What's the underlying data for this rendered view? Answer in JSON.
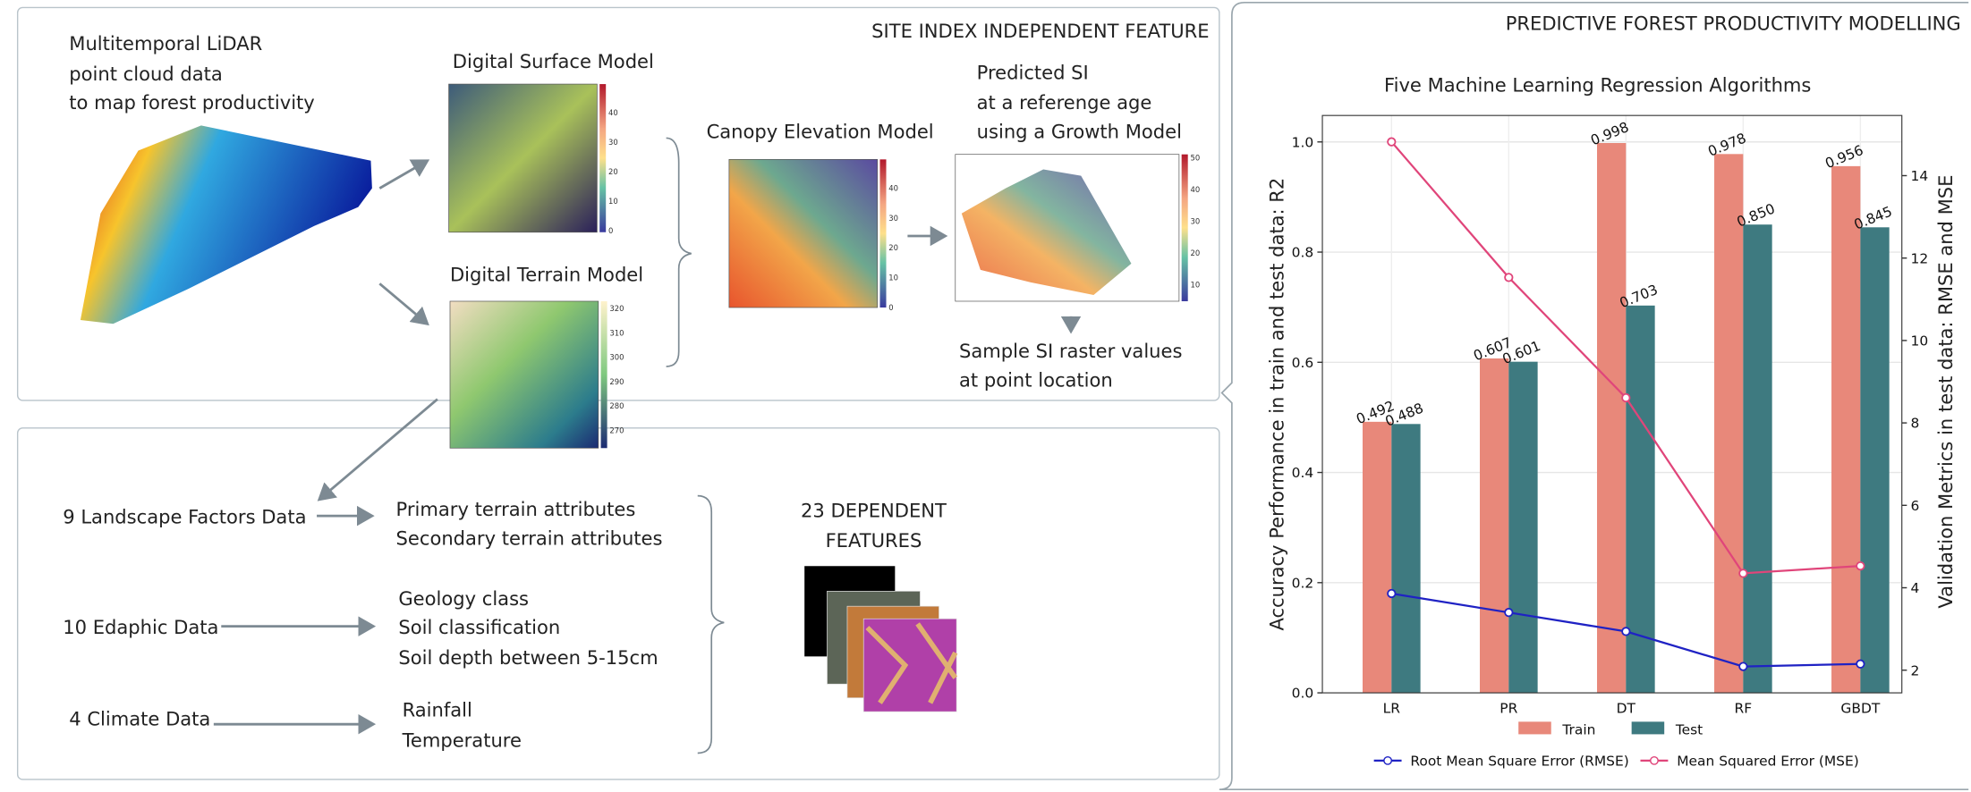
{
  "site_panel": {
    "title": "SITE INDEX INDEPENDENT FEATURE",
    "lidar": [
      "Multitemporal LiDAR",
      "point cloud data",
      "to map forest productivity"
    ],
    "dsm": {
      "label": "Digital Surface Model",
      "colorbar": [
        "40",
        "30",
        "20",
        "10",
        "0"
      ]
    },
    "dtm": {
      "label": "Digital Terrain Model",
      "colorbar": [
        "320",
        "310",
        "300",
        "290",
        "280",
        "270"
      ]
    },
    "chm": {
      "label": "Canopy Elevation Model",
      "colorbar": [
        "40",
        "30",
        "20",
        "10",
        "0"
      ]
    },
    "si": {
      "label": [
        "Predicted SI",
        "at a referenge age",
        "using a Growth Model"
      ],
      "colorbar": [
        "50",
        "40",
        "30",
        "20",
        "10"
      ]
    },
    "sample": [
      "Sample SI raster values",
      "at point location"
    ]
  },
  "dependent_panel": {
    "groups": [
      {
        "label": "9 Landscape Factors Data",
        "items": [
          "Primary terrain attributes",
          "Secondary terrain attributes"
        ]
      },
      {
        "label": "10 Edaphic Data",
        "items": [
          "Geology class",
          "Soil classification",
          "Soil depth between 5-15cm"
        ]
      },
      {
        "label": "4 Climate Data",
        "items": [
          "Rainfall",
          "Temperature"
        ]
      }
    ],
    "result": [
      "23 DEPENDENT",
      "FEATURES"
    ]
  },
  "model_panel": {
    "title": "PREDICTIVE FOREST PRODUCTIVITY MODELLING"
  },
  "chart_data": {
    "type": "bar",
    "title": "Five Machine Learning Regression Algorithms",
    "ylabel": "Accuracy Performance in train and test data: R2",
    "y2label": "Validation Metrics in test data: RMSE and MSE",
    "categories": [
      "LR",
      "PR",
      "DT",
      "RF",
      "GBDT"
    ],
    "series": [
      {
        "name": "Train",
        "type": "bar",
        "color": "#e8887a",
        "values": [
          0.492,
          0.607,
          0.998,
          0.978,
          0.956
        ],
        "value_labels": [
          "0.492",
          "0.607",
          "0.998",
          "0.978",
          "0.956"
        ]
      },
      {
        "name": "Test",
        "type": "bar",
        "color": "#3e7a80",
        "values": [
          0.488,
          0.601,
          0.703,
          0.85,
          0.845
        ],
        "value_labels": [
          "0.488",
          "0.601",
          "0.703",
          "0.850",
          "0.845"
        ]
      },
      {
        "name": "Root Mean Square Error (RMSE)",
        "type": "line",
        "axis": "y2",
        "color": "#1f22c4",
        "values": [
          3.86,
          3.4,
          2.94,
          2.09,
          2.15
        ]
      },
      {
        "name": "Mean Squared Error (MSE)",
        "type": "line",
        "axis": "y2",
        "color": "#e0457a",
        "values": [
          14.82,
          11.53,
          8.61,
          4.35,
          4.53
        ]
      }
    ],
    "ylim": [
      0,
      1.048
    ],
    "yticks": [
      {
        "value": 0,
        "label": "0.0"
      },
      {
        "value": 0.2,
        "label": "0.2"
      },
      {
        "value": 0.4,
        "label": "0.4"
      },
      {
        "value": 0.6,
        "label": "0.6"
      },
      {
        "value": 0.8,
        "label": "0.8"
      },
      {
        "value": 1,
        "label": "1.0"
      }
    ],
    "y2lim": [
      1.45,
      15.46
    ],
    "y2ticks": [
      2,
      4,
      6,
      8,
      10,
      12,
      14
    ],
    "grid": true
  }
}
